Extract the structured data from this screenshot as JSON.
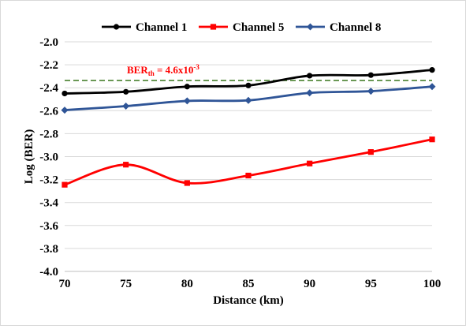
{
  "chart_data": {
    "type": "line",
    "x": [
      70,
      75,
      80,
      85,
      90,
      95,
      100
    ],
    "series": [
      {
        "name": "Channel 1",
        "color": "#000000",
        "marker": "circle",
        "values": [
          -2.45,
          -2.435,
          -2.39,
          -2.38,
          -2.295,
          -2.29,
          -2.245
        ]
      },
      {
        "name": "Channel 5",
        "color": "#ff0000",
        "marker": "square",
        "values": [
          -3.245,
          -3.07,
          -3.23,
          -3.165,
          -3.06,
          -2.96,
          -2.85
        ]
      },
      {
        "name": "Channel 8",
        "color": "#2f5597",
        "marker": "diamond",
        "values": [
          -2.595,
          -2.56,
          -2.515,
          -2.51,
          -2.445,
          -2.43,
          -2.39
        ]
      }
    ],
    "threshold": {
      "value": -2.337,
      "color": "#38761d",
      "style": "dashed",
      "label_main": "BER",
      "label_sub": "th",
      "label_eq": " = 4.6x10",
      "label_sup": "-3",
      "label_color": "#ff0000"
    },
    "xlabel": "Distance (km)",
    "ylabel": "Log (BER)",
    "xlim": [
      70,
      100
    ],
    "ylim": [
      -4.0,
      -2.0
    ],
    "xticks": [
      "70",
      "75",
      "80",
      "85",
      "90",
      "95",
      "100"
    ],
    "yticks": [
      "-2.0",
      "-2.2",
      "-2.4",
      "-2.6",
      "-2.8",
      "-3.0",
      "-3.2",
      "-3.4",
      "-3.6",
      "-3.8",
      "-4.0"
    ],
    "grid": "horizontal",
    "legend_position": "top"
  }
}
